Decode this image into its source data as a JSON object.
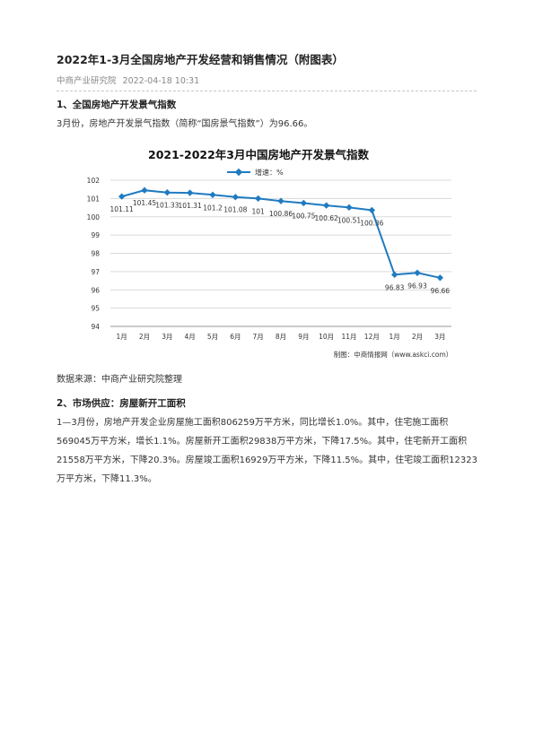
{
  "article": {
    "title": "2022年1-3月全国房地产开发经营和销售情况（附图表）",
    "source": "中商产业研究院",
    "datetime": "2022-04-18 10:31"
  },
  "section1": {
    "heading": "1、全国房地产开发景气指数",
    "text": "3月份，房地产开发景气指数（简称“国房景气指数”）为96.66。",
    "data_source": "数据来源：中商产业研究院整理"
  },
  "section2": {
    "heading": "2、市场供应：房屋新开工面积",
    "text": "1—3月份，房地产开发企业房屋施工面积806259万平方米，同比增长1.0%。其中，住宅施工面积569045万平方米，增长1.1%。房屋新开工面积29838万平方米，下降17.5%。其中，住宅新开工面积21558万平方米，下降20.3%。房屋竣工面积16929万平方米，下降11.5%。其中，住宅竣工面积12323万平方米，下降11.3%。"
  },
  "chart_data": {
    "type": "line",
    "title": "2021-2022年3月中国房地产开发景气指数",
    "legend": "增速：%",
    "legend_position": "top-center",
    "categories": [
      "1月",
      "2月",
      "3月",
      "4月",
      "5月",
      "6月",
      "7月",
      "8月",
      "9月",
      "10月",
      "11月",
      "12月",
      "1月",
      "2月",
      "3月"
    ],
    "values": [
      101.11,
      101.45,
      101.33,
      101.31,
      101.2,
      101.08,
      101,
      100.86,
      100.75,
      100.62,
      100.51,
      100.36,
      96.83,
      96.93,
      96.66
    ],
    "data_labels": [
      "101.11",
      "101.45",
      "101.33",
      "101.31",
      "101.2",
      "101.08",
      "101",
      "100.86",
      "100.75",
      "100.62",
      "100.51",
      "100.36",
      "96.83",
      "96.93",
      "96.66"
    ],
    "ylim": [
      94,
      102
    ],
    "yticks": [
      "94",
      "95",
      "96",
      "97",
      "98",
      "99",
      "100",
      "101",
      "102"
    ],
    "grid": true,
    "line_color": "#1f7bc1",
    "credit": "制图：中商情报网（www.askci.com）"
  }
}
